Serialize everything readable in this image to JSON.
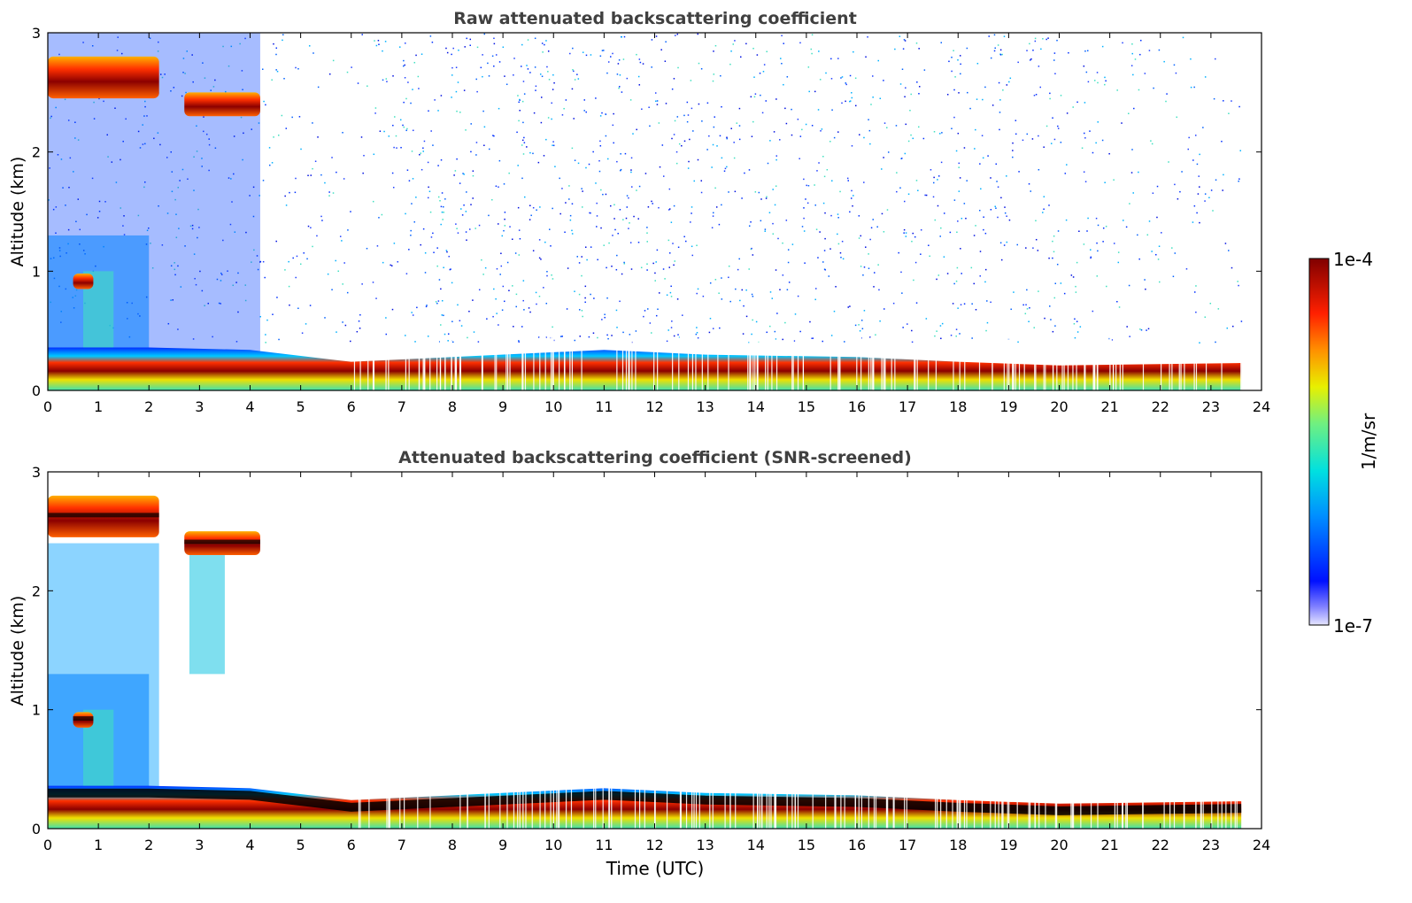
{
  "chart_data": [
    {
      "type": "heatmap",
      "title": "Raw attenuated backscattering coefficient",
      "xlabel": "",
      "ylabel": "Altitude (km)",
      "xlim": [
        0,
        24
      ],
      "ylim": [
        0,
        3
      ],
      "xticks": [
        "0",
        "1",
        "2",
        "3",
        "4",
        "5",
        "6",
        "7",
        "8",
        "9",
        "10",
        "11",
        "12",
        "13",
        "14",
        "15",
        "16",
        "17",
        "18",
        "19",
        "20",
        "21",
        "22",
        "23",
        "24"
      ],
      "yticks": [
        "0",
        "1",
        "2",
        "3"
      ],
      "screened": false,
      "features": [
        {
          "name": "boundary-layer aerosol top",
          "time_utc": [
            0,
            2,
            4,
            6,
            8,
            10,
            11,
            13,
            16,
            18,
            20,
            23.6
          ],
          "altitude_km": [
            0.3,
            0.3,
            0.28,
            0.18,
            0.22,
            0.26,
            0.28,
            0.24,
            0.22,
            0.18,
            0.15,
            0.17
          ]
        },
        {
          "name": "mid-level cloud",
          "time_utc": [
            0,
            2.2
          ],
          "altitude_km": [
            2.45,
            2.8
          ]
        },
        {
          "name": "mid-level cloud",
          "time_utc": [
            2.7,
            4.2
          ],
          "altitude_km": [
            2.3,
            2.5
          ]
        },
        {
          "name": "low cloud",
          "time_utc": [
            0.5,
            0.9
          ],
          "altitude_km": [
            0.85,
            0.98
          ]
        }
      ]
    },
    {
      "type": "heatmap",
      "title": "Attenuated backscattering coefficient (SNR-screened)",
      "xlabel": "Time (UTC)",
      "ylabel": "Altitude (km)",
      "xlim": [
        0,
        24
      ],
      "ylim": [
        0,
        3
      ],
      "xticks": [
        "0",
        "1",
        "2",
        "3",
        "4",
        "5",
        "6",
        "7",
        "8",
        "9",
        "10",
        "11",
        "12",
        "13",
        "14",
        "15",
        "16",
        "17",
        "18",
        "19",
        "20",
        "21",
        "22",
        "23",
        "24"
      ],
      "yticks": [
        "0",
        "1",
        "2",
        "3"
      ],
      "screened": true
    }
  ],
  "colorbar": {
    "label": "1/m/sr",
    "max_label": "1e-4",
    "min_label": "1e-7",
    "scale": "log",
    "range": [
      1e-07,
      0.0001
    ],
    "colormap": [
      "#e0e0ff",
      "#2020ff",
      "#00c8e6",
      "#60f0a0",
      "#f0f000",
      "#ff8000",
      "#ff0000",
      "#800000"
    ]
  }
}
